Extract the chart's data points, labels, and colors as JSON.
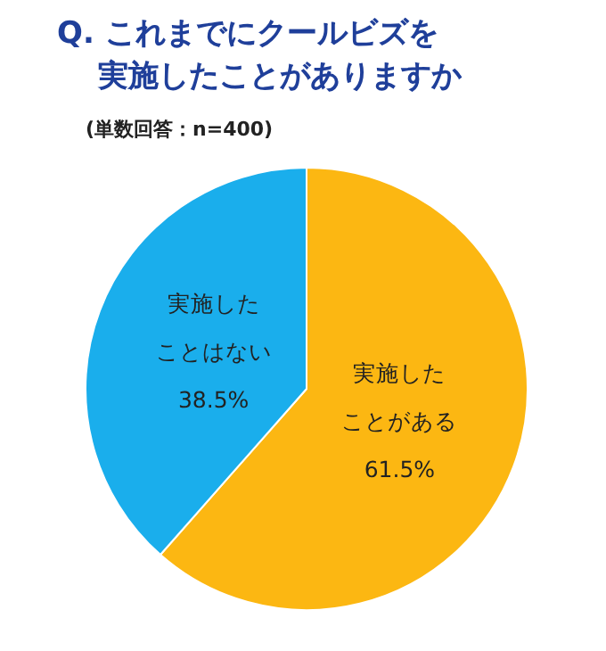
{
  "chart_data": {
    "type": "pie",
    "title": "Q. これまでにクールビズを実施したことがありますか",
    "subtitle": "(単数回答：n=400)",
    "categories": [
      "実施したことがある",
      "実施したことはない"
    ],
    "values": [
      61.5,
      38.5
    ],
    "colors": [
      "#fcb712",
      "#1aaeec"
    ],
    "value_labels": [
      "61.5%",
      "38.5%"
    ],
    "legend": false
  }
}
